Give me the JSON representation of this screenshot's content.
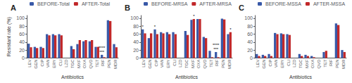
{
  "chart_data": [
    {
      "type": "bar",
      "title": "A",
      "categories": [
        "LEV",
        "GEN",
        "CIP",
        "VAN",
        "ERY",
        "CLI",
        "LZD",
        "TGC",
        "MXF",
        "OXA",
        "QVD",
        "TET",
        "RIF",
        "PEN",
        "MDR"
      ],
      "series": [
        {
          "name": "BEFORE-Total",
          "color": "#3959a8",
          "values": [
            36,
            28,
            28,
            60,
            60,
            60,
            0,
            30,
            35,
            42,
            42,
            28,
            8,
            95,
            35
          ]
        },
        {
          "name": "AFTER-Total",
          "color": "#c1282a",
          "values": [
            27,
            25,
            25,
            57,
            57,
            57,
            0,
            22,
            45,
            45,
            45,
            28,
            2,
            93,
            27
          ]
        }
      ],
      "annotations": [
        {
          "category": "RIF",
          "text": "****\n***"
        }
      ],
      "xlabel": "Antibiotics",
      "ylabel": "Resistant rate (%)",
      "ylim": [
        0,
        107
      ],
      "yticks": [
        0,
        20,
        40,
        60,
        80,
        100
      ],
      "grid": false,
      "legend": "top"
    },
    {
      "type": "bar",
      "title": "B",
      "categories": [
        "LEV",
        "GEN",
        "CIP",
        "VAN",
        "ERY",
        "CLI",
        "LZD",
        "TGC",
        "MXF",
        "OXA",
        "QVD",
        "TET",
        "RIF",
        "PEN",
        "MDR"
      ],
      "series": [
        {
          "name": "BEFORE-MRSA",
          "color": "#3959a8",
          "values": [
            72,
            50,
            72,
            65,
            65,
            65,
            0,
            68,
            96,
            98,
            53,
            18,
            15,
            99,
            60
          ]
        },
        {
          "name": "AFTER-MRSA",
          "color": "#c1282a",
          "values": [
            62,
            62,
            60,
            62,
            60,
            60,
            0,
            58,
            98,
            98,
            50,
            2,
            2,
            97,
            65
          ]
        }
      ],
      "annotations": [
        {
          "category": "LEV",
          "text": "*"
        },
        {
          "category": "CIP",
          "text": "*"
        },
        {
          "category": "MXF",
          "text": "*"
        },
        {
          "category": "RIF",
          "text": "****\n***"
        },
        {
          "category": "MDR",
          "text": "*"
        }
      ],
      "xlabel": "Antibiotics",
      "ylim": [
        0,
        107
      ],
      "yticks": [
        0,
        20,
        40,
        60,
        80,
        100
      ],
      "grid": false,
      "legend": "top"
    },
    {
      "type": "bar",
      "title": "C",
      "categories": [
        "LEV",
        "GEN",
        "CIP",
        "VAN",
        "ERY",
        "CLI",
        "LZD",
        "TGC",
        "MXF",
        "OXA",
        "QVD",
        "TET",
        "RIF",
        "PEN",
        "MDR"
      ],
      "series": [
        {
          "name": "BEFORE-MSSA",
          "color": "#3959a8",
          "values": [
            10,
            8,
            10,
            63,
            62,
            60,
            0,
            10,
            8,
            5,
            0,
            15,
            0,
            87,
            20
          ]
        },
        {
          "name": "AFTER-MSSA",
          "color": "#c1282a",
          "values": [
            5,
            5,
            5,
            60,
            60,
            58,
            0,
            5,
            5,
            2,
            0,
            18,
            0,
            83,
            15
          ]
        }
      ],
      "xlabel": "Antibiotics",
      "ylim": [
        0,
        107
      ],
      "yticks": [
        0,
        20,
        40,
        60,
        80,
        100
      ],
      "grid": false,
      "legend": "top"
    }
  ]
}
